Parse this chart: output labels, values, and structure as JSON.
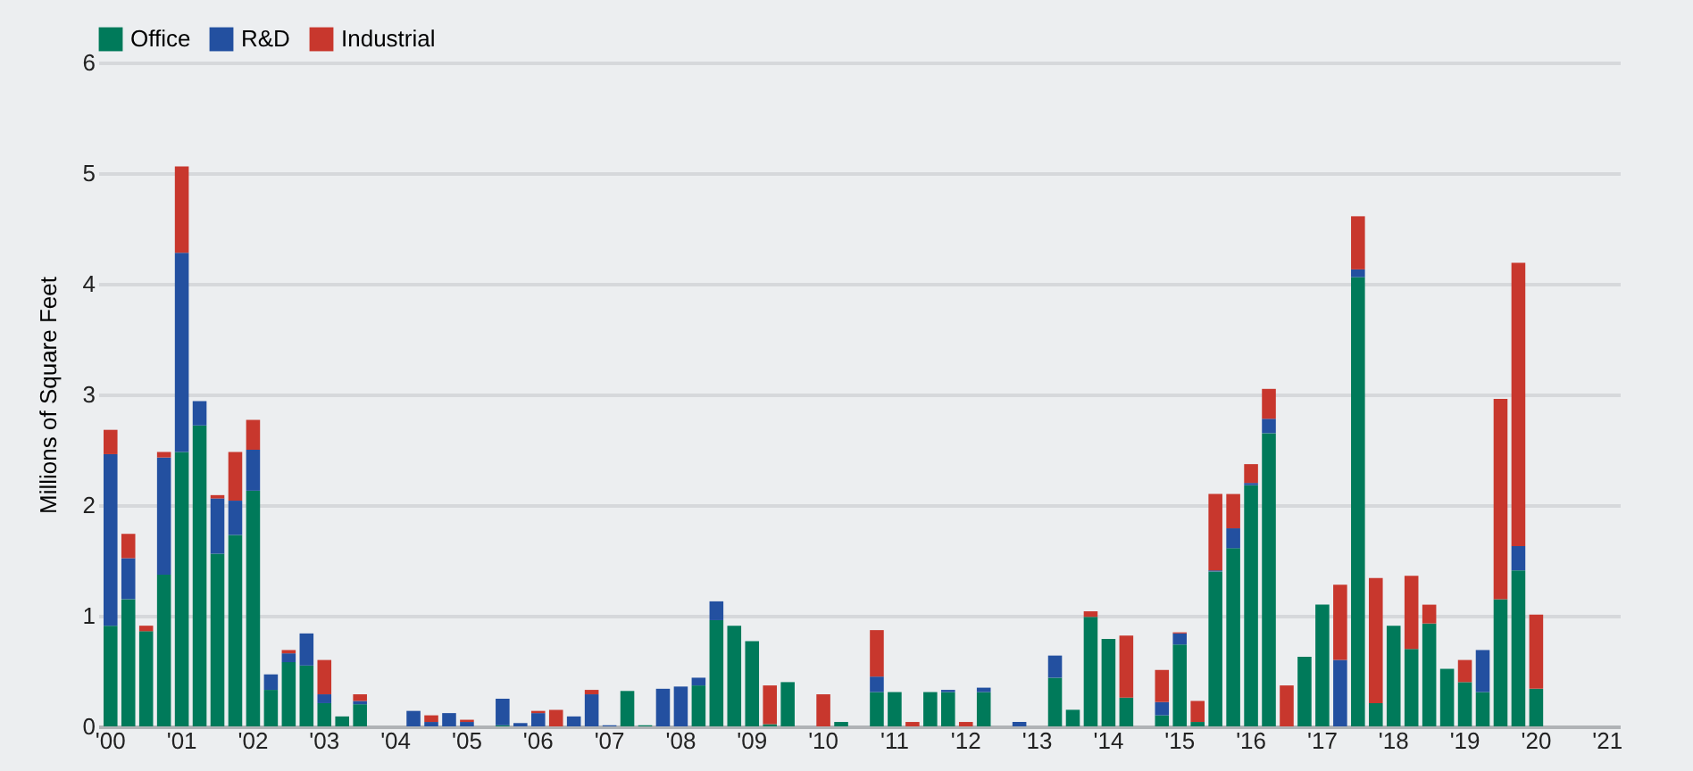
{
  "chart_data": {
    "type": "bar",
    "stacked": true,
    "ylabel": "Millions of Square Feet",
    "categories": [
      "'00",
      null,
      null,
      null,
      "'01",
      null,
      null,
      null,
      "'02",
      null,
      null,
      null,
      "'03",
      null,
      null,
      null,
      "'04",
      null,
      null,
      null,
      "'05",
      null,
      null,
      null,
      "'06",
      null,
      null,
      null,
      "'07",
      null,
      null,
      null,
      "'08",
      null,
      null,
      null,
      "'09",
      null,
      null,
      null,
      "'10",
      null,
      null,
      null,
      "'11",
      null,
      null,
      null,
      "'12",
      null,
      null,
      null,
      "'13",
      null,
      null,
      null,
      "'14",
      null,
      null,
      null,
      "'15",
      null,
      null,
      null,
      "'16",
      null,
      null,
      null,
      "'17",
      null,
      null,
      null,
      "'18",
      null,
      null,
      null,
      "'19",
      null,
      null,
      null,
      "'20",
      null,
      null,
      null,
      "'21"
    ],
    "series": [
      {
        "name": "Office",
        "color": "#007a5a",
        "values": [
          0.91,
          1.15,
          0.86,
          1.37,
          2.48,
          2.72,
          1.56,
          1.73,
          2.13,
          0.33,
          0.58,
          0.55,
          0.21,
          0.09,
          0.2,
          0,
          0,
          0,
          0,
          0,
          0,
          0,
          0.01,
          0,
          0,
          0,
          0,
          0,
          0,
          0.32,
          0.01,
          0,
          0,
          0.37,
          0.96,
          0.91,
          0.77,
          0.02,
          0.4,
          0,
          0,
          0.04,
          0,
          0.31,
          0.31,
          0,
          0.31,
          0.31,
          0,
          0.31,
          0,
          0,
          0,
          0.44,
          0.15,
          0.99,
          0.79,
          0.26,
          0,
          0.1,
          0.74,
          0.04,
          1.4,
          1.61,
          2.18,
          2.65,
          0,
          0.63,
          1.1,
          0,
          4.06,
          0.21,
          0.91,
          0.7,
          0.93,
          0.52,
          0.4,
          0.31,
          1.15,
          1.41,
          0.34,
          null,
          null,
          null,
          null
        ]
      },
      {
        "name": "R&D",
        "color": "#2350a0",
        "values": [
          1.55,
          0.37,
          0,
          1.06,
          1.8,
          0.22,
          0.5,
          0.31,
          0.37,
          0.14,
          0.08,
          0.29,
          0.08,
          0,
          0.03,
          0,
          0,
          0.14,
          0.04,
          0.12,
          0.04,
          0,
          0.24,
          0.03,
          0.12,
          0,
          0.09,
          0.29,
          0.01,
          0,
          0,
          0.34,
          0.36,
          0.07,
          0.17,
          0,
          0,
          0,
          0,
          0,
          0,
          0,
          0,
          0.14,
          0,
          0,
          0,
          0.02,
          0,
          0.04,
          0,
          0.04,
          0,
          0.2,
          0,
          0,
          0,
          0,
          0,
          0.12,
          0.1,
          0,
          0.01,
          0.18,
          0.02,
          0.13,
          0,
          0,
          0,
          0.6,
          0.07,
          0,
          0,
          0,
          0,
          0,
          0,
          0.38,
          0,
          0.22,
          0,
          null,
          null,
          null,
          null
        ]
      },
      {
        "name": "Industrial",
        "color": "#c8372d",
        "values": [
          0.22,
          0.22,
          0.05,
          0.05,
          0.78,
          0,
          0.03,
          0.44,
          0.27,
          0,
          0.03,
          0,
          0.31,
          0,
          0.06,
          0,
          0,
          0,
          0.06,
          0,
          0.02,
          0,
          0,
          0,
          0.02,
          0.15,
          0,
          0.04,
          0,
          0,
          0,
          0,
          0,
          0,
          0,
          0,
          0,
          0.35,
          0,
          0,
          0.29,
          0,
          0,
          0.42,
          0,
          0.04,
          0,
          0,
          0.04,
          0,
          0,
          0,
          0,
          0,
          0,
          0.05,
          0,
          0.56,
          0,
          0.29,
          0.01,
          0.19,
          0.69,
          0.31,
          0.17,
          0.27,
          0.37,
          0,
          0,
          0.68,
          0.48,
          1.13,
          0,
          0.66,
          0.17,
          0,
          0.2,
          0,
          1.81,
          2.56,
          0.67,
          null,
          null,
          null,
          null
        ]
      }
    ],
    "ylim": [
      0,
      6
    ],
    "yticks": [
      0,
      1,
      2,
      3,
      4,
      5,
      6
    ],
    "grid": "y",
    "legend": "top left"
  }
}
